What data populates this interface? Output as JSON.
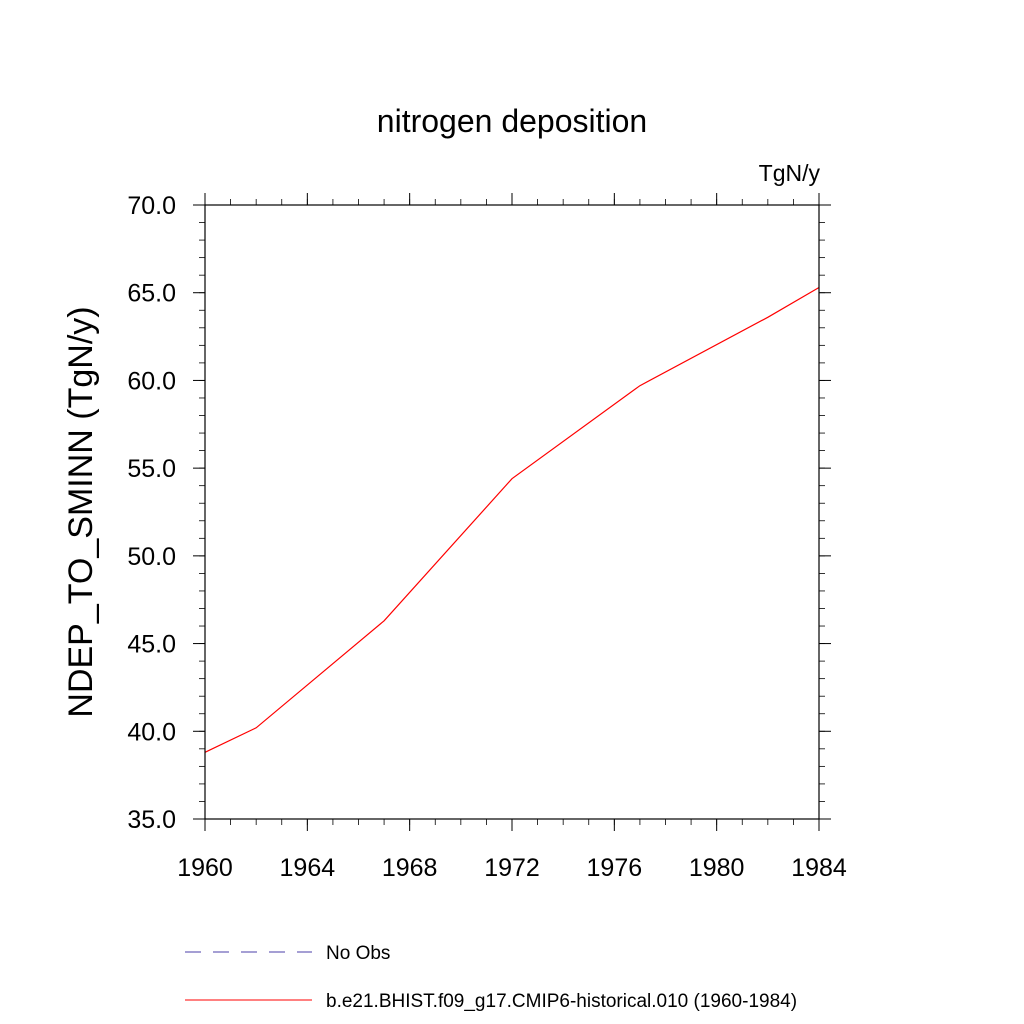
{
  "chart_data": {
    "type": "line",
    "title": "nitrogen deposition",
    "units_label": "TgN/y",
    "ylabel": "NDEP_TO_SMINN  (TgN/y)",
    "xlabel": "",
    "xlim": [
      1960,
      1984
    ],
    "ylim": [
      35.0,
      70.0
    ],
    "x_ticks": [
      "1960",
      "1964",
      "1968",
      "1972",
      "1976",
      "1980",
      "1984"
    ],
    "y_ticks": [
      "35.0",
      "40.0",
      "45.0",
      "50.0",
      "55.0",
      "60.0",
      "65.0",
      "70.0"
    ],
    "grid": false,
    "series": [
      {
        "name": "b.e21.BHIST.f09_g17.CMIP6-historical.010 (1960-1984)",
        "color": "#ff0000",
        "x": [
          1960,
          1962,
          1967,
          1972,
          1977,
          1982,
          1984
        ],
        "y": [
          38.8,
          40.2,
          46.3,
          54.4,
          59.7,
          63.6,
          65.3
        ]
      }
    ],
    "legend": {
      "position": "bottom",
      "entries": [
        {
          "label": "No Obs",
          "color": "#4b3fa8",
          "style": "dashed"
        },
        {
          "label": "b.e21.BHIST.f09_g17.CMIP6-historical.010 (1960-1984)",
          "color": "#ff0000",
          "style": "solid"
        }
      ]
    }
  }
}
